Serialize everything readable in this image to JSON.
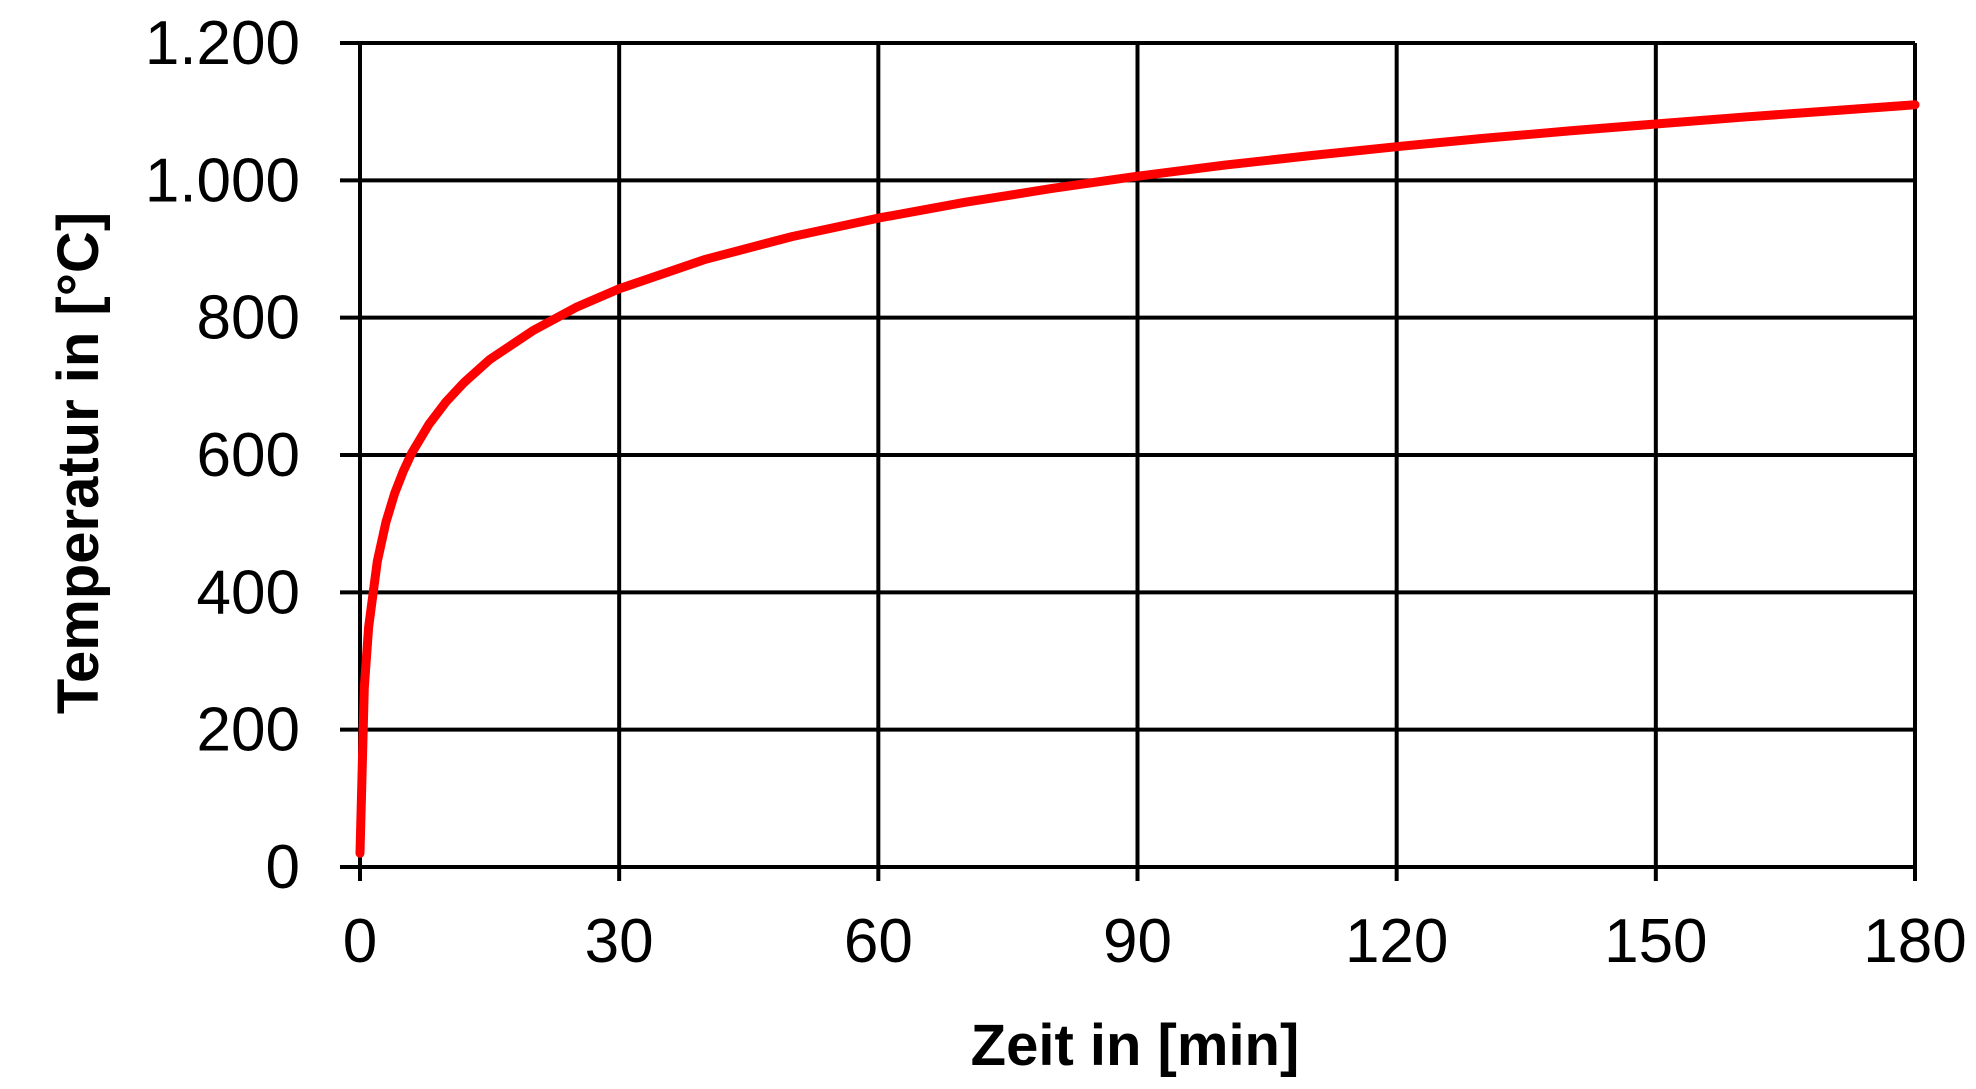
{
  "chart_data": {
    "type": "line",
    "title": "",
    "xlabel": "Zeit in [min]",
    "ylabel": "Temperatur in [°C]",
    "xlim": [
      0,
      180
    ],
    "ylim": [
      0,
      1200
    ],
    "x_ticks": [
      0,
      30,
      60,
      90,
      120,
      150,
      180
    ],
    "x_tick_labels": [
      "0",
      "30",
      "60",
      "90",
      "120",
      "150",
      "180"
    ],
    "y_ticks": [
      0,
      200,
      400,
      600,
      800,
      1000,
      1200
    ],
    "y_tick_labels": [
      "0",
      "200",
      "400",
      "600",
      "800",
      "1.000",
      "1.200"
    ],
    "grid": true,
    "legend": "none",
    "line_color": "#ff0000",
    "grid_color": "#000000",
    "series": [
      {
        "x": [
          0,
          0.5,
          1,
          2,
          3,
          4,
          5,
          6,
          8,
          10,
          12,
          15,
          20,
          25,
          30,
          40,
          50,
          60,
          70,
          80,
          90,
          100,
          110,
          120,
          130,
          140,
          150,
          160,
          170,
          180
        ],
        "values": [
          20,
          261,
          349,
          445,
          502,
          544,
          576,
          603,
          645,
          678,
          705,
          739,
          781,
          815,
          842,
          885,
          918,
          945,
          968,
          988,
          1006,
          1022,
          1036,
          1049,
          1061,
          1072,
          1082,
          1092,
          1101,
          1110
        ]
      }
    ]
  }
}
